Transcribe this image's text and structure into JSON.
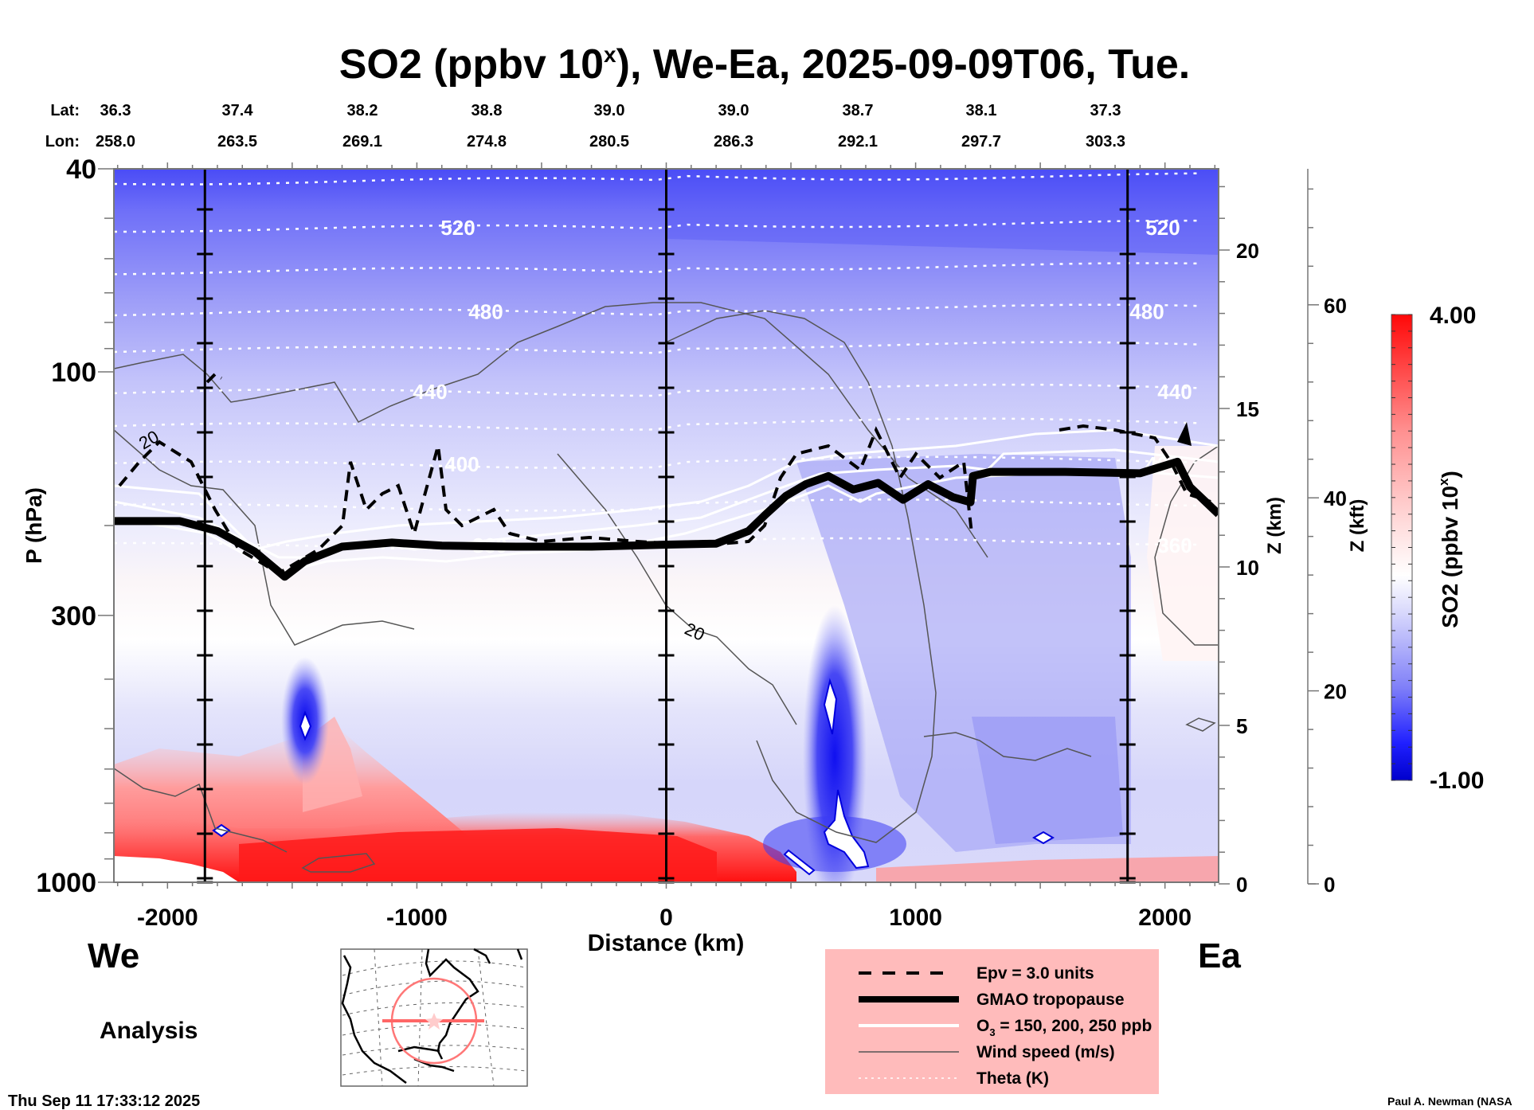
{
  "chart_data": {
    "type": "heatmap",
    "title": "SO2 (ppbv 10",
    "title_sup": "x",
    "title_rest": "), We-Ea, 2025-09-09T06, Tue.",
    "xlabel": "Distance (km)",
    "ylabel": "P (hPa)",
    "y2label": "Z (km)",
    "y3label": "Z (kft)",
    "xlim": [
      -2215,
      2215
    ],
    "ylim_hpa": [
      1000,
      40
    ],
    "yscale": "log",
    "x_ticks": [
      -2000,
      -1000,
      0,
      1000,
      2000
    ],
    "x_tick_labels": [
      "-2000",
      "-1000",
      "0",
      "1000",
      "2000"
    ],
    "y_ticks": [
      40,
      100,
      300,
      1000
    ],
    "y_tick_labels": [
      "40",
      "100",
      "300",
      "1000"
    ],
    "y2_ticks": [
      0,
      5,
      10,
      15,
      20
    ],
    "y2_tick_labels": [
      "0",
      "5",
      "10",
      "15",
      "20"
    ],
    "y3_ticks": [
      0,
      20,
      40,
      60
    ],
    "y3_tick_labels": [
      "0",
      "20",
      "40",
      "60"
    ],
    "grid": false,
    "lat_label": "Lat:",
    "lon_label": "Lon:",
    "latitudes": [
      "36.3",
      "37.4",
      "38.2",
      "38.8",
      "39.0",
      "39.0",
      "38.7",
      "38.1",
      "37.3"
    ],
    "longitudes": [
      "258.0",
      "263.5",
      "269.1",
      "274.8",
      "280.5",
      "286.3",
      "292.1",
      "297.7",
      "303.3"
    ],
    "section_markers_km": [
      -1850,
      0,
      1850
    ],
    "colorbar": {
      "label": "SO2 (ppbv 10",
      "label_sup": "x",
      "label_close": ")",
      "min": -1.0,
      "max": 4.0,
      "min_label": "-1.00",
      "max_label": "4.00",
      "low_color": "#0000cc",
      "mid_color": "#ffffff",
      "high_color": "#ff0000"
    },
    "theta_levels": [
      {
        "value": 540,
        "label": ""
      },
      {
        "value": 520,
        "label": "520"
      },
      {
        "value": 500,
        "label": ""
      },
      {
        "value": 480,
        "label": "480"
      },
      {
        "value": 460,
        "label": ""
      },
      {
        "value": 440,
        "label": "440"
      },
      {
        "value": 420,
        "label": ""
      },
      {
        "value": 400,
        "label": "400"
      },
      {
        "value": 380,
        "label": ""
      },
      {
        "value": 360,
        "label": "360"
      }
    ],
    "theta_hpa": [
      42,
      52,
      63,
      76,
      90,
      109,
      127,
      151,
      183,
      218
    ],
    "tropopause": {
      "x_km": [
        -2215,
        -1950,
        -1800,
        -1650,
        -1530,
        -1450,
        -1300,
        -1100,
        -900,
        -600,
        -300,
        0,
        200,
        330,
        400,
        480,
        560,
        650,
        750,
        850,
        950,
        1050,
        1150,
        1220,
        1230,
        1300,
        1600,
        1900,
        2050,
        2100,
        2215
      ],
      "p_hpa": [
        196,
        196,
        205,
        225,
        252,
        235,
        220,
        216,
        219,
        220,
        220,
        218,
        217,
        205,
        190,
        175,
        166,
        160,
        170,
        165,
        178,
        166,
        176,
        180,
        160,
        157,
        157,
        158,
        150,
        168,
        190
      ]
    },
    "wind_label": "20",
    "so2_features": [
      {
        "name": "surface-high-west",
        "x_km": [
          -2215,
          0
        ],
        "p_hpa": [
          560,
          1000
        ],
        "value": 3.0
      },
      {
        "name": "surface-high-center",
        "x_km": [
          -1600,
          400
        ],
        "p_hpa": [
          800,
          1000
        ],
        "value": 4.0
      },
      {
        "name": "plume-west",
        "x_km": [
          -1450
        ],
        "p_hpa": [
          520
        ],
        "value": -1.0
      },
      {
        "name": "plume-center",
        "x_km": [
          680
        ],
        "p_hpa": [
          450
        ],
        "value": -1.0
      },
      {
        "name": "upper-strat",
        "x_km": [
          -2215,
          2215
        ],
        "p_hpa": [
          40,
          90
        ],
        "value": -0.6
      },
      {
        "name": "surface-east",
        "x_km": [
          1200,
          2215
        ],
        "p_hpa": [
          880,
          1000
        ],
        "value": 1.5
      },
      {
        "name": "mid-trop-east",
        "x_km": [
          1200,
          1850
        ],
        "p_hpa": [
          220,
          880
        ],
        "value": -0.25
      }
    ],
    "legend": [
      {
        "label": "Epv = 3.0 units",
        "style": "dashed"
      },
      {
        "label": "GMAO tropopause",
        "style": "thick"
      },
      {
        "label": "O",
        "label_sub": "3",
        "label_rest": " = 150, 200, 250 ppb",
        "style": "white"
      },
      {
        "label": "Wind speed (m/s)",
        "style": "thin"
      },
      {
        "label": "Theta (K)",
        "style": "dotted"
      }
    ],
    "legend_placement": "bottom-center",
    "legend_bg": "#ffbbbb",
    "annotations": {
      "west_label": "We",
      "east_label": "Ea",
      "run_type": "Analysis",
      "timestamp": "Thu Sep 11 17:33:12 2025",
      "credit": "Paul A. Newman (NASA"
    },
    "inset_map": {
      "description": "North America locator with section track",
      "track_color": "#ff7777"
    }
  }
}
